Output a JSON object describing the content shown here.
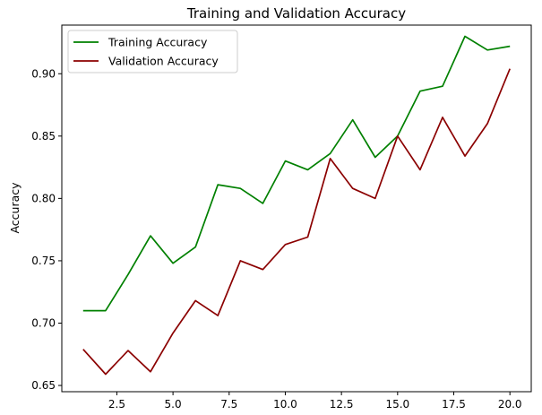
{
  "chart_data": {
    "type": "line",
    "title": "Training and Validation Accuracy",
    "xlabel": "",
    "ylabel": "Accuracy",
    "xlim": [
      0.05,
      20.95
    ],
    "ylim": [
      0.645,
      0.939
    ],
    "xticks": [
      2.5,
      5.0,
      7.5,
      10.0,
      12.5,
      15.0,
      17.5,
      20.0
    ],
    "xtick_labels": [
      "2.5",
      "5.0",
      "7.5",
      "10.0",
      "12.5",
      "15.0",
      "17.5",
      "20.0"
    ],
    "yticks": [
      0.65,
      0.7,
      0.75,
      0.8,
      0.85,
      0.9
    ],
    "ytick_labels": [
      "0.65",
      "0.70",
      "0.75",
      "0.80",
      "0.85",
      "0.90"
    ],
    "grid": false,
    "legend_position": "upper-left",
    "x": [
      1,
      2,
      3,
      4,
      5,
      6,
      7,
      8,
      9,
      10,
      11,
      12,
      13,
      14,
      15,
      16,
      17,
      18,
      19,
      20
    ],
    "series": [
      {
        "name": "Training Accuracy",
        "color": "#008000",
        "values": [
          0.71,
          0.71,
          0.739,
          0.77,
          0.748,
          0.761,
          0.811,
          0.808,
          0.796,
          0.83,
          0.823,
          0.836,
          0.863,
          0.833,
          0.85,
          0.886,
          0.89,
          0.93,
          0.919,
          0.922
        ]
      },
      {
        "name": "Validation Accuracy",
        "color": "#8b0000",
        "values": [
          0.679,
          0.659,
          0.678,
          0.661,
          0.692,
          0.718,
          0.706,
          0.75,
          0.743,
          0.763,
          0.769,
          0.832,
          0.808,
          0.8,
          0.85,
          0.823,
          0.865,
          0.834,
          0.86,
          0.904
        ]
      }
    ]
  }
}
